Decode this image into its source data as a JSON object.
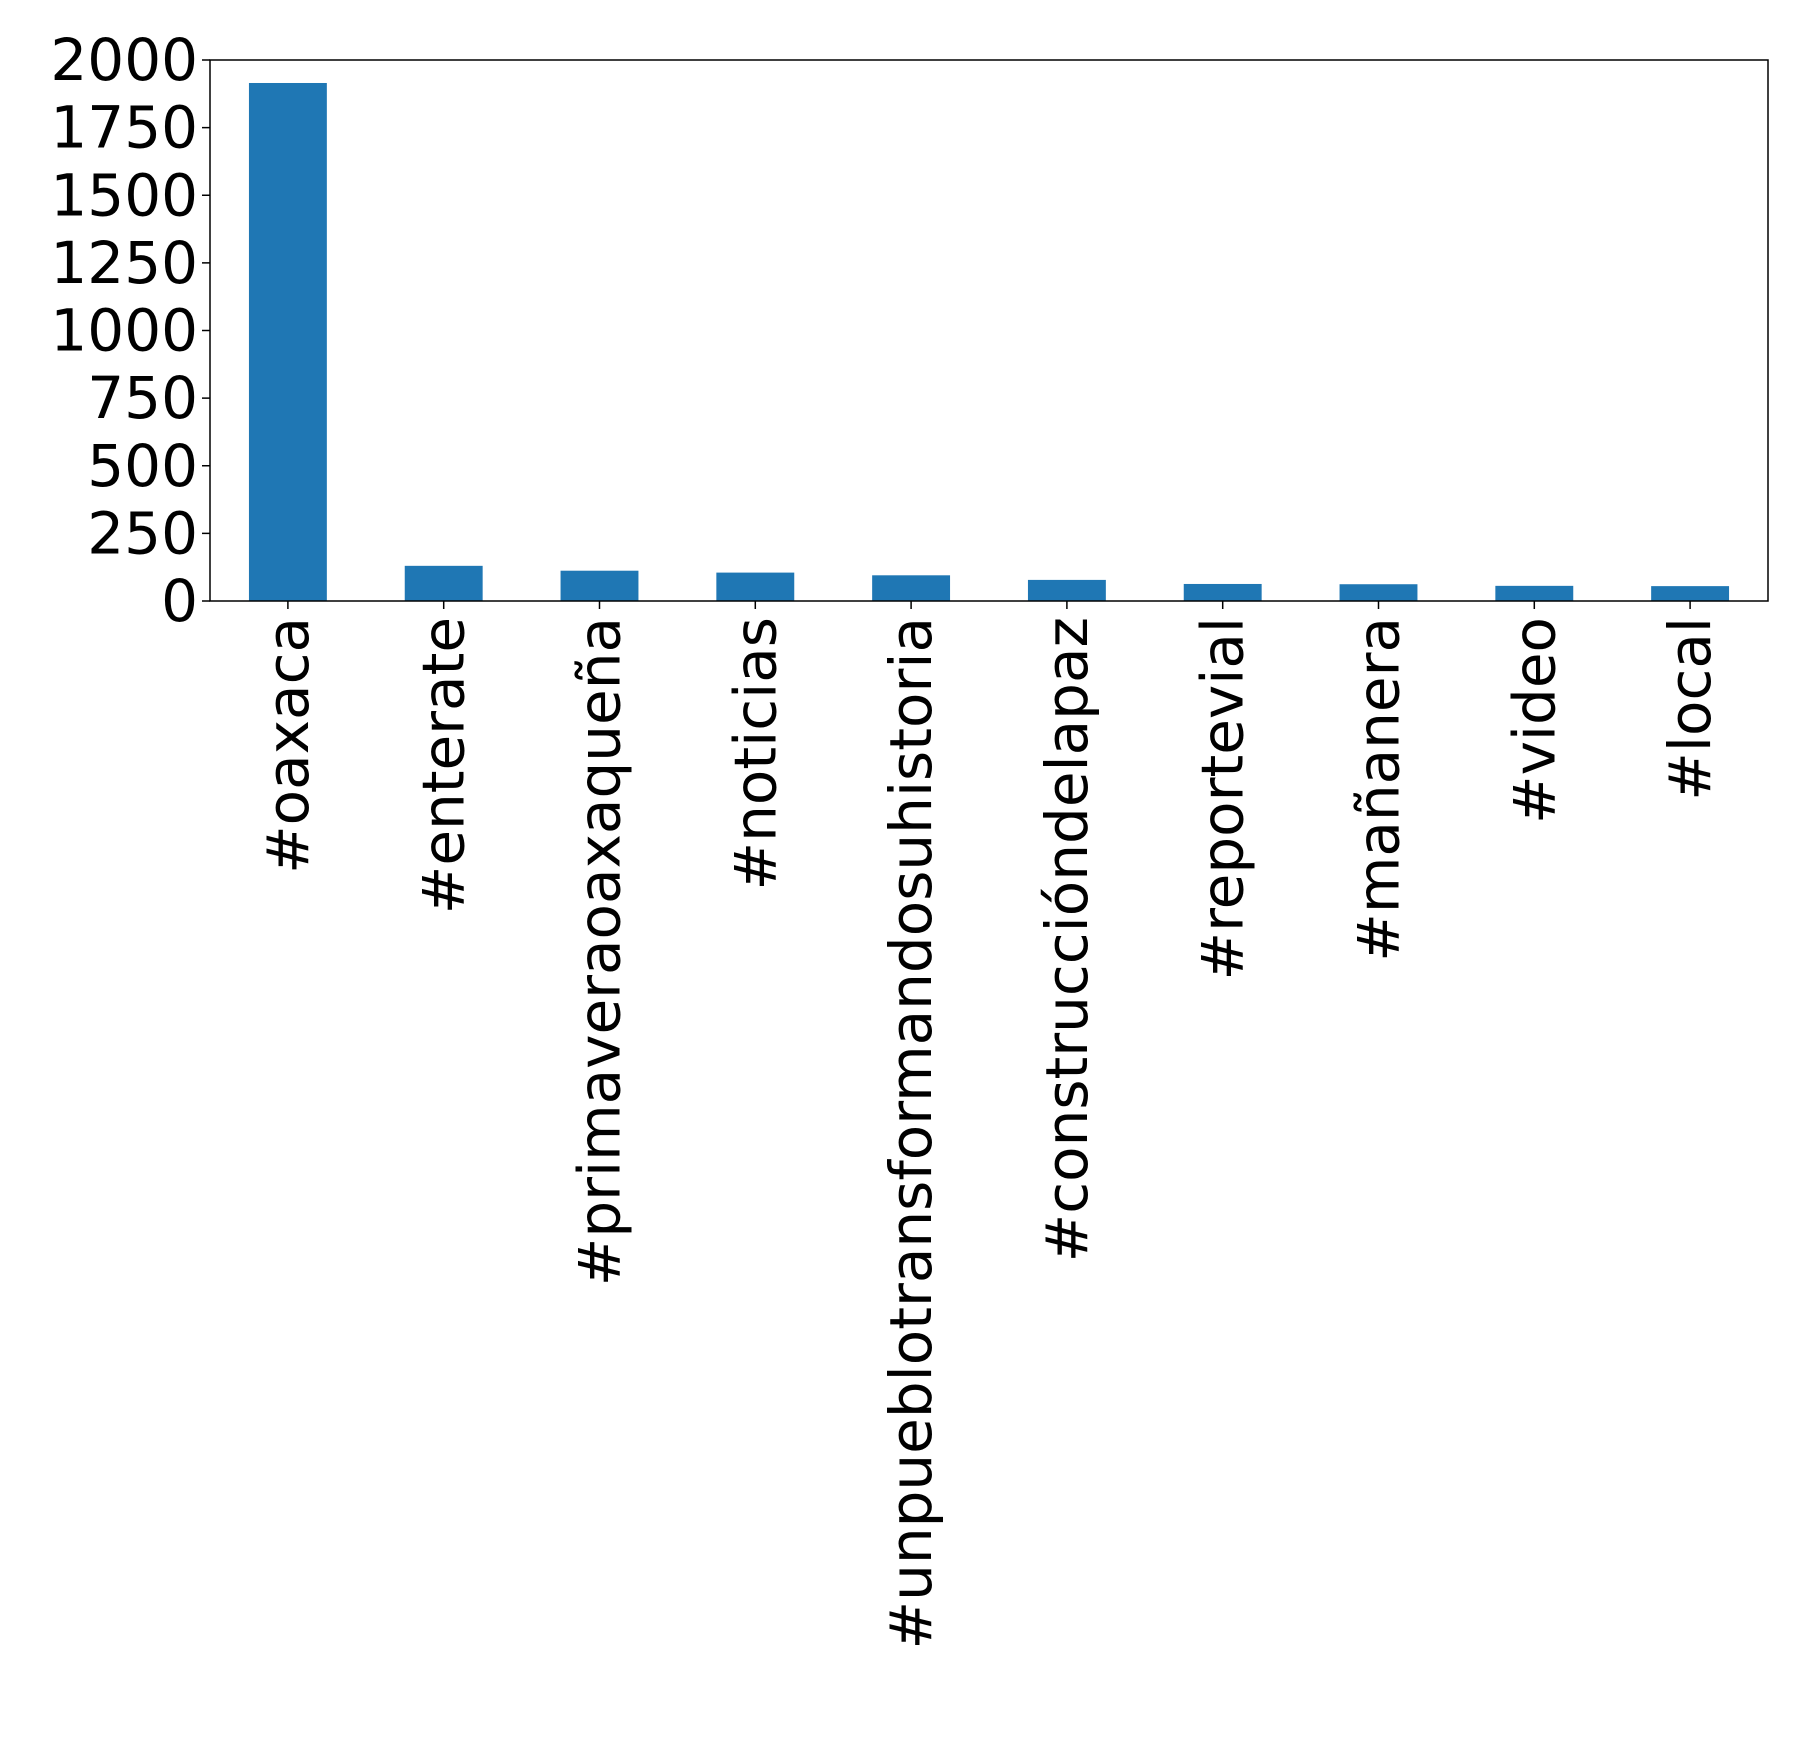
{
  "chart_data": {
    "type": "bar",
    "title": "",
    "xlabel": "",
    "ylabel": "",
    "categories": [
      "#oaxaca",
      "#enterate",
      "#primaveraoaxaqueña",
      "#noticias",
      "#unpueblotransformandosuhistoria",
      "#construccióndelapaz",
      "#reportevial",
      "#mañanera",
      "#video",
      "#local"
    ],
    "values": [
      1915,
      130,
      112,
      105,
      95,
      78,
      63,
      62,
      56,
      55
    ],
    "ylim": [
      0,
      2000
    ],
    "yticks": [
      0,
      250,
      500,
      750,
      1000,
      1250,
      1500,
      1750,
      2000
    ],
    "ytick_labels": [
      "0",
      "250",
      "500",
      "750",
      "1000",
      "1250",
      "1500",
      "1750",
      "2000"
    ],
    "grid": false,
    "legend": "none",
    "bar_color": "#1f77b4"
  }
}
